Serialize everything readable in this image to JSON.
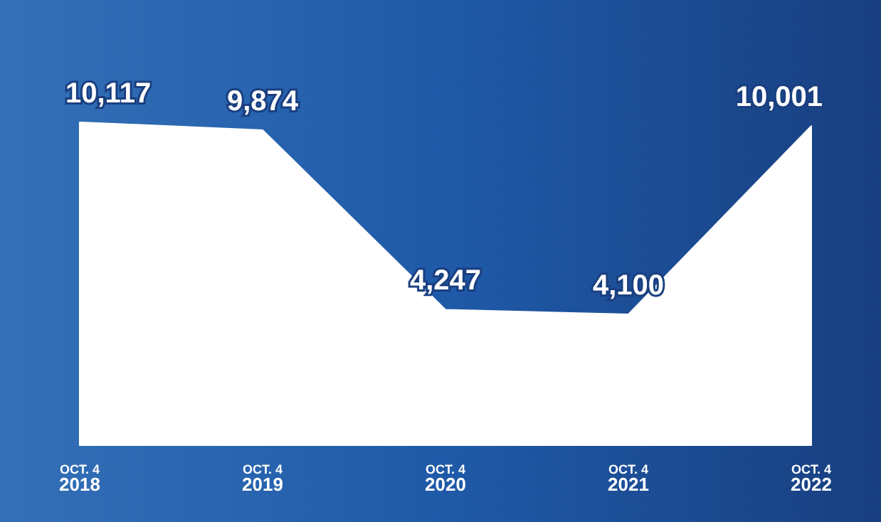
{
  "chart_data": {
    "type": "area",
    "categories": [
      "OCT. 4\n2018",
      "OCT. 4\n2019",
      "OCT. 4\n2020",
      "OCT. 4\n2021",
      "OCT. 4\n2022"
    ],
    "series": [
      {
        "color": "#ffffff",
        "values": [
          10117,
          9874,
          4247,
          4100,
          10001
        ],
        "value_labels": [
          "10,117",
          "9,874",
          "4,247",
          "4,100",
          "10,001"
        ]
      }
    ]
  }
}
